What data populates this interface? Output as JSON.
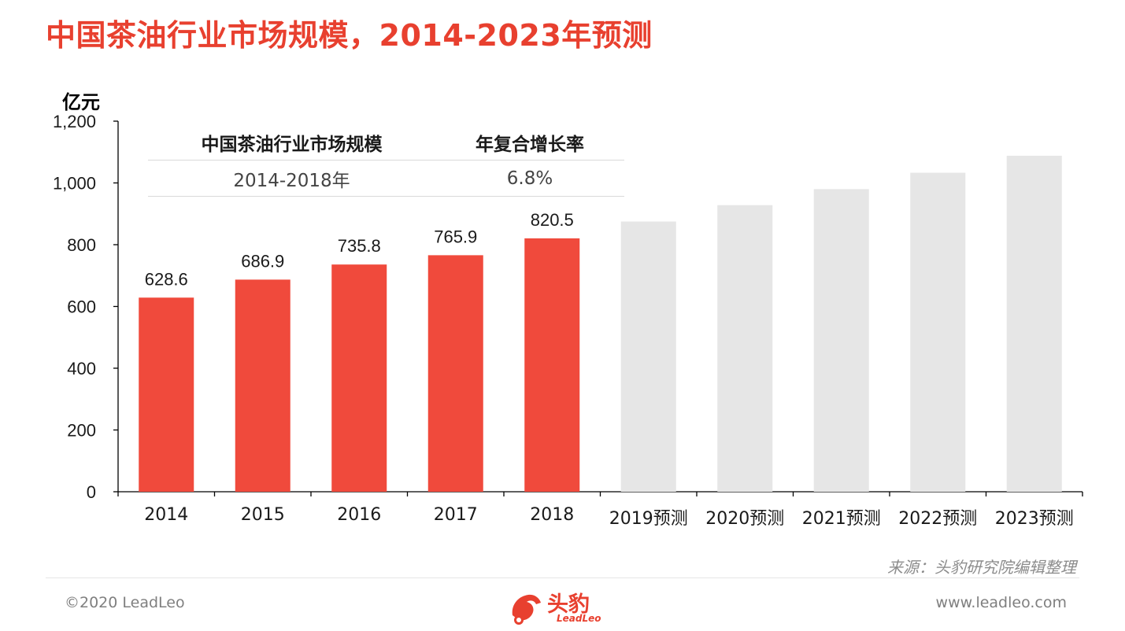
{
  "title": "中国茶油行业市场规模，2014-2023年预测",
  "unit_label": "亿元",
  "table": {
    "headers": [
      "中国茶油行业市场规模",
      "年复合增长率"
    ],
    "row": [
      "2014-2018年",
      "6.8%"
    ]
  },
  "chart_data": {
    "type": "bar",
    "title": "中国茶油行业市场规模，2014-2023年预测",
    "ylabel": "亿元",
    "ylim": [
      0,
      1200
    ],
    "yticks": [
      0,
      200,
      400,
      600,
      800,
      1000,
      1200
    ],
    "ytick_labels": [
      "0",
      "200",
      "400",
      "600",
      "800",
      "1,000",
      "1,200"
    ],
    "grid": false,
    "categories": [
      "2014",
      "2015",
      "2016",
      "2017",
      "2018",
      "2019预测",
      "2020预测",
      "2021预测",
      "2022预测",
      "2023预测"
    ],
    "values": [
      628.6,
      686.9,
      735.8,
      765.9,
      820.5,
      875,
      928,
      980,
      1033,
      1088
    ],
    "data_labels": [
      "628.6",
      "686.9",
      "735.8",
      "765.9",
      "820.5",
      "",
      "",
      "",
      "",
      ""
    ],
    "forecast": [
      false,
      false,
      false,
      false,
      false,
      true,
      true,
      true,
      true,
      true
    ],
    "colors": {
      "actual": "#f04a3c",
      "forecast": "#e6e6e6",
      "axis": "#000000"
    }
  },
  "source": "来源：头豹研究院编辑整理",
  "footer": {
    "copyright": "©2020 LeadLeo",
    "website": "www.leadleo.com",
    "logo_text": "头豹",
    "logo_sub": "LeadLeo"
  }
}
